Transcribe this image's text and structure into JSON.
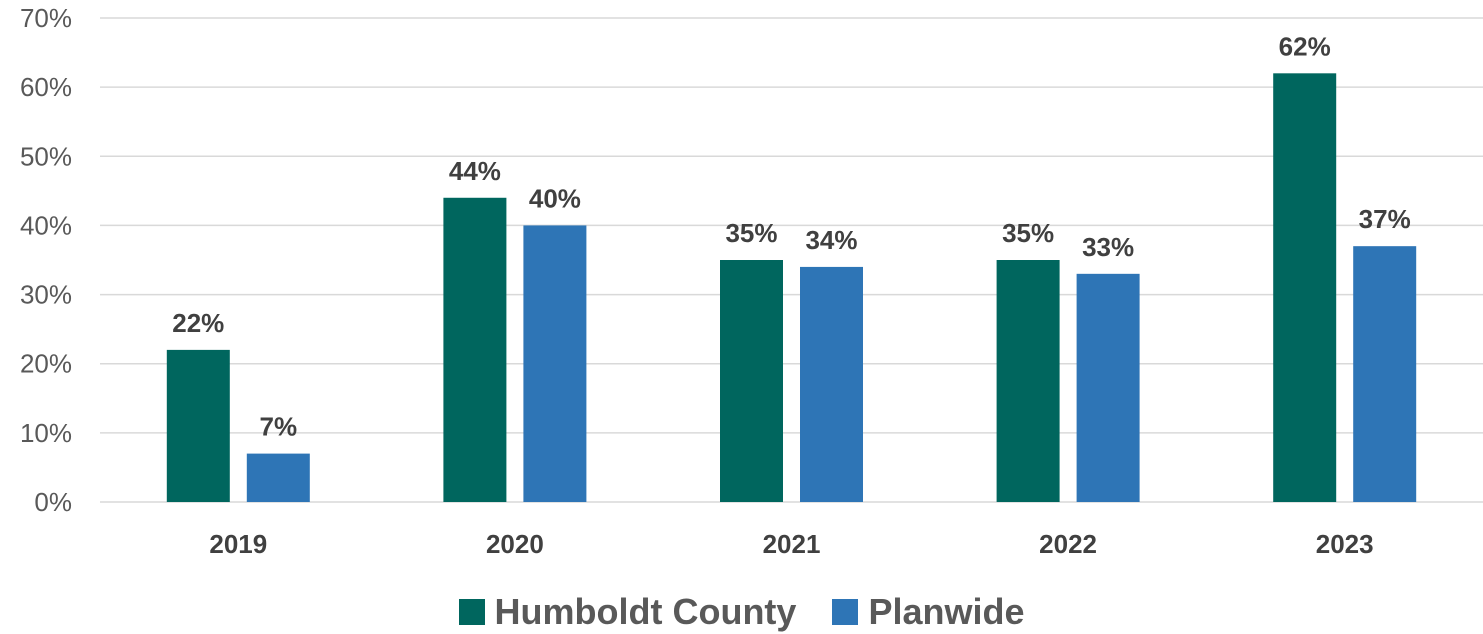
{
  "chart_data": {
    "type": "bar",
    "categories": [
      "2019",
      "2020",
      "2021",
      "2022",
      "2023"
    ],
    "series": [
      {
        "name": "Humboldt County",
        "values": [
          22,
          44,
          35,
          35,
          62
        ],
        "labels": [
          "22%",
          "44%",
          "35%",
          "35%",
          "62%"
        ],
        "color": "#00665e"
      },
      {
        "name": "Planwide",
        "values": [
          7,
          40,
          34,
          33,
          37
        ],
        "labels": [
          "7%",
          "40%",
          "34%",
          "33%",
          "37%"
        ],
        "color": "#2e75b6"
      }
    ],
    "ylim": [
      0,
      70
    ],
    "yticks": [
      0,
      10,
      20,
      30,
      40,
      50,
      60,
      70
    ],
    "ytick_labels": [
      "0%",
      "10%",
      "20%",
      "30%",
      "40%",
      "50%",
      "60%",
      "70%"
    ],
    "grid": true,
    "legend_position": "bottom"
  }
}
